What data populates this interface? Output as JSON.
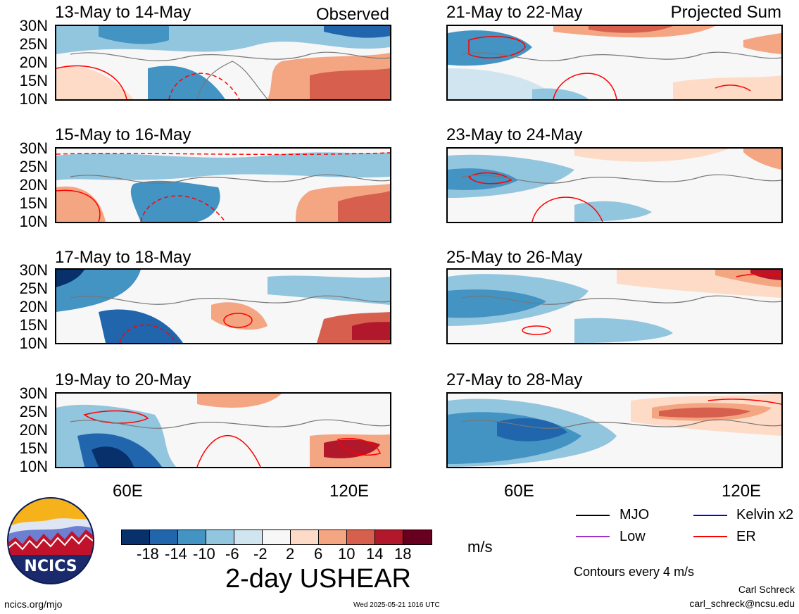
{
  "panels": [
    {
      "title": "13-May to 14-May",
      "tag": "Observed"
    },
    {
      "title": "21-May to 22-May",
      "tag": "Projected Sum"
    },
    {
      "title": "15-May to 16-May",
      "tag": ""
    },
    {
      "title": "23-May to 24-May",
      "tag": ""
    },
    {
      "title": "17-May to 18-May",
      "tag": ""
    },
    {
      "title": "25-May to 26-May",
      "tag": ""
    },
    {
      "title": "19-May to 20-May",
      "tag": ""
    },
    {
      "title": "27-May to 28-May",
      "tag": ""
    }
  ],
  "lat_labels": [
    "30N",
    "25N",
    "20N",
    "15N",
    "10N"
  ],
  "lon_labels": [
    "60E",
    "120E"
  ],
  "colorbar": {
    "colors": [
      "#08306b",
      "#2166ac",
      "#4393c3",
      "#92c5de",
      "#d1e5f0",
      "#f7f7f7",
      "#fddbc7",
      "#f4a582",
      "#d6604d",
      "#b2182b",
      "#67001f"
    ],
    "labels": [
      "-18",
      "-14",
      "-10",
      "-6",
      "-2",
      "2",
      "6",
      "10",
      "14",
      "18"
    ],
    "units": "m/s"
  },
  "title": "2-day USHEAR",
  "legend": [
    {
      "label": "MJO",
      "color": "#000000"
    },
    {
      "label": "Kelvin x2",
      "color": "#0000ff"
    },
    {
      "label": "Low",
      "color": "#9933cc"
    },
    {
      "label": "ER",
      "color": "#ff0000"
    }
  ],
  "contour_note": "Contours every 4 m/s",
  "author": "Carl Schreck",
  "email": "carl_schreck@ncsu.edu",
  "site": "ncics.org/mjo",
  "timestamp": "Wed 2025-05-21 1016 UTC",
  "logo_text": "NCICS"
}
